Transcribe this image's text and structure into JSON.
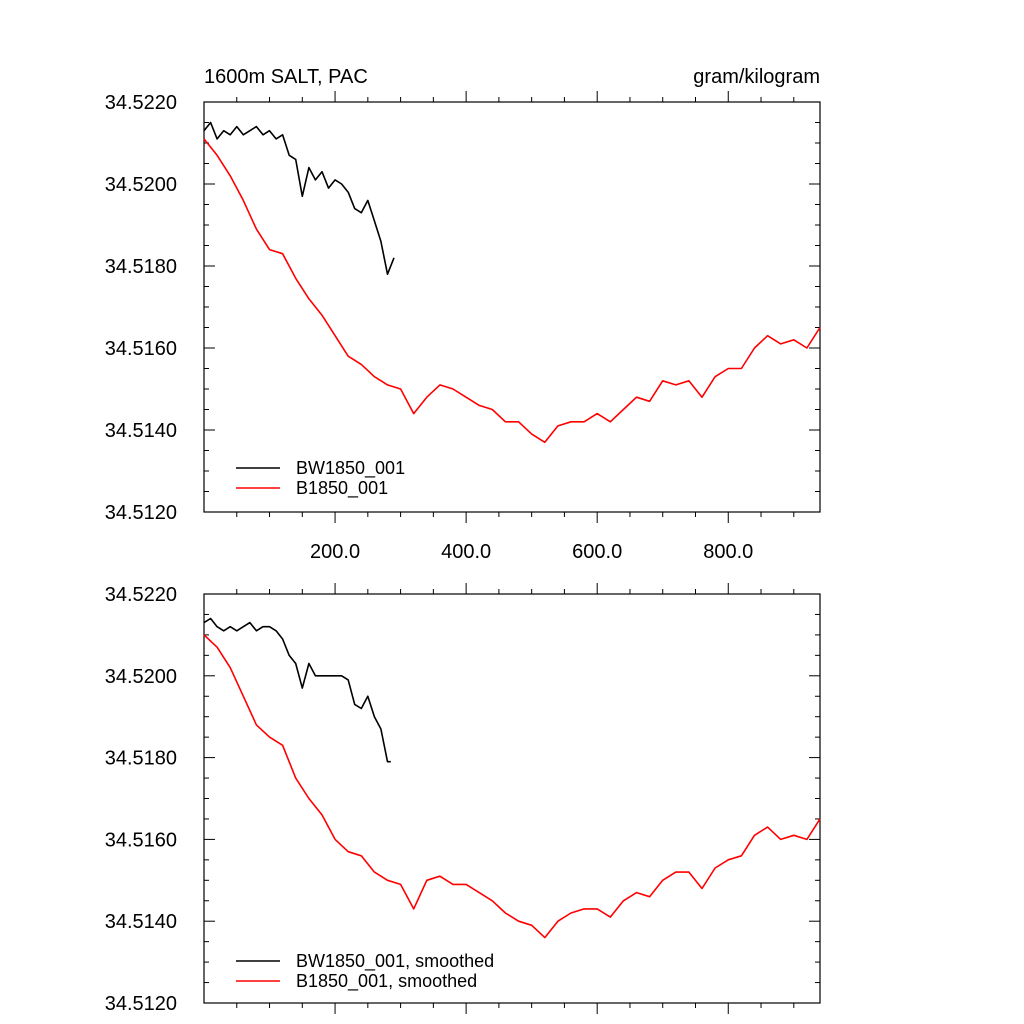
{
  "figure": {
    "left_title": "1600m SALT, PAC",
    "right_title": "gram/kilogram"
  },
  "chart_data": [
    {
      "type": "line",
      "title": "1600m SALT, PAC",
      "units": "gram/kilogram",
      "xlim": [
        0,
        940
      ],
      "ylim": [
        34.512,
        34.522
      ],
      "xticks": [
        200,
        400,
        600,
        800
      ],
      "xtick_labels": [
        "200.0",
        "400.0",
        "600.0",
        "800.0"
      ],
      "yticks": [
        34.512,
        34.514,
        34.516,
        34.518,
        34.52,
        34.522
      ],
      "ytick_labels": [
        "34.5120",
        "34.5140",
        "34.5160",
        "34.5180",
        "34.5200",
        "34.5220"
      ],
      "legend_position": "bottom-left",
      "grid": false,
      "series": [
        {
          "name": "BW1850_001",
          "color": "#000000",
          "x": [
            0,
            10,
            20,
            30,
            40,
            50,
            60,
            70,
            80,
            90,
            100,
            110,
            120,
            130,
            140,
            150,
            160,
            170,
            180,
            190,
            200,
            210,
            220,
            230,
            240,
            250,
            260,
            270,
            280,
            290
          ],
          "y": [
            34.5213,
            34.5215,
            34.5211,
            34.5213,
            34.5212,
            34.5214,
            34.5212,
            34.5213,
            34.5214,
            34.5212,
            34.5213,
            34.5211,
            34.5212,
            34.5207,
            34.5206,
            34.5197,
            34.5204,
            34.5201,
            34.5203,
            34.5199,
            34.5201,
            34.52,
            34.5198,
            34.5194,
            34.5193,
            34.5196,
            34.5191,
            34.5186,
            34.5178,
            34.5182
          ]
        },
        {
          "name": "B1850_001",
          "color": "#ff0000",
          "x": [
            0,
            20,
            40,
            60,
            80,
            100,
            120,
            140,
            160,
            180,
            200,
            220,
            240,
            260,
            280,
            300,
            320,
            340,
            360,
            380,
            400,
            420,
            440,
            460,
            480,
            500,
            520,
            540,
            560,
            580,
            600,
            620,
            640,
            660,
            680,
            700,
            720,
            740,
            760,
            780,
            800,
            820,
            840,
            860,
            880,
            900,
            920,
            940
          ],
          "y": [
            34.5211,
            34.5207,
            34.5202,
            34.5196,
            34.5189,
            34.5184,
            34.5183,
            34.5177,
            34.5172,
            34.5168,
            34.5163,
            34.5158,
            34.5156,
            34.5153,
            34.5151,
            34.515,
            34.5144,
            34.5148,
            34.5151,
            34.515,
            34.5148,
            34.5146,
            34.5145,
            34.5142,
            34.5142,
            34.5139,
            34.5137,
            34.5141,
            34.5142,
            34.5142,
            34.5144,
            34.5142,
            34.5145,
            34.5148,
            34.5147,
            34.5152,
            34.5151,
            34.5152,
            34.5148,
            34.5153,
            34.5155,
            34.5155,
            34.516,
            34.5163,
            34.5161,
            34.5162,
            34.516,
            34.5165
          ]
        }
      ]
    },
    {
      "type": "line",
      "xlim": [
        0,
        940
      ],
      "ylim": [
        34.512,
        34.522
      ],
      "yticks": [
        34.512,
        34.514,
        34.516,
        34.518,
        34.52,
        34.522
      ],
      "ytick_labels": [
        "34.5120",
        "34.5140",
        "34.5160",
        "34.5180",
        "34.5200",
        "34.5220"
      ],
      "xticks": [
        200,
        400,
        600,
        800
      ],
      "xtick_labels": [],
      "legend_position": "bottom-left",
      "grid": false,
      "series": [
        {
          "name": "BW1850_001, smoothed",
          "color": "#000000",
          "x": [
            0,
            10,
            20,
            30,
            40,
            50,
            60,
            70,
            80,
            90,
            100,
            110,
            120,
            130,
            140,
            150,
            160,
            170,
            180,
            190,
            200,
            210,
            220,
            230,
            240,
            250,
            260,
            270,
            280,
            285
          ],
          "y": [
            34.5213,
            34.5214,
            34.5212,
            34.5211,
            34.5212,
            34.5211,
            34.5212,
            34.5213,
            34.5211,
            34.5212,
            34.5212,
            34.5211,
            34.5209,
            34.5205,
            34.5203,
            34.5197,
            34.5203,
            34.52,
            34.52,
            34.52,
            34.52,
            34.52,
            34.5199,
            34.5193,
            34.5192,
            34.5195,
            34.519,
            34.5187,
            34.5179,
            34.5179
          ]
        },
        {
          "name": "B1850_001, smoothed",
          "color": "#ff0000",
          "x": [
            0,
            20,
            40,
            60,
            80,
            100,
            120,
            140,
            160,
            180,
            200,
            220,
            240,
            260,
            280,
            300,
            320,
            340,
            360,
            380,
            400,
            420,
            440,
            460,
            480,
            500,
            520,
            540,
            560,
            580,
            600,
            620,
            640,
            660,
            680,
            700,
            720,
            740,
            760,
            780,
            800,
            820,
            840,
            860,
            880,
            900,
            920,
            940
          ],
          "y": [
            34.521,
            34.5207,
            34.5202,
            34.5195,
            34.5188,
            34.5185,
            34.5183,
            34.5175,
            34.517,
            34.5166,
            34.516,
            34.5157,
            34.5156,
            34.5152,
            34.515,
            34.5149,
            34.5143,
            34.515,
            34.5151,
            34.5149,
            34.5149,
            34.5147,
            34.5145,
            34.5142,
            34.514,
            34.5139,
            34.5136,
            34.514,
            34.5142,
            34.5143,
            34.5143,
            34.5141,
            34.5145,
            34.5147,
            34.5146,
            34.515,
            34.5152,
            34.5152,
            34.5148,
            34.5153,
            34.5155,
            34.5156,
            34.5161,
            34.5163,
            34.516,
            34.5161,
            34.516,
            34.5165
          ]
        }
      ]
    }
  ]
}
